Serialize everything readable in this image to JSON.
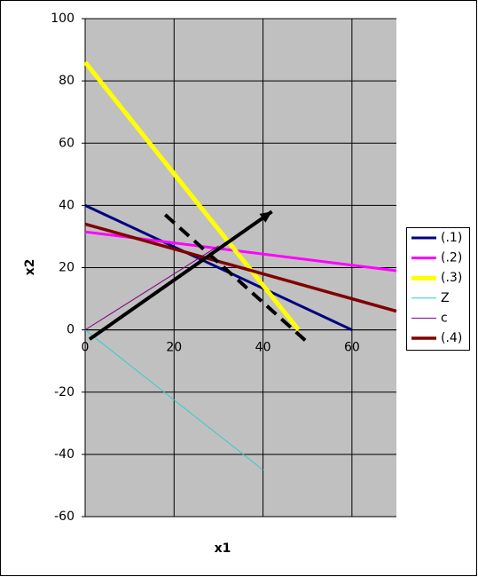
{
  "chart_data": {
    "type": "line",
    "x_label": "x1",
    "y_label": "x2",
    "xlim": [
      0,
      70
    ],
    "xticks": [
      0,
      20,
      40,
      60
    ],
    "ylim": [
      -60,
      100
    ],
    "yticks": [
      -60,
      -40,
      -20,
      0,
      20,
      40,
      60,
      80,
      100
    ],
    "grid": true,
    "legend": "right",
    "series": [
      {
        "name": "(.1)",
        "color": "#000080",
        "width": 3,
        "x": [
          0,
          60
        ],
        "values": [
          40,
          0
        ]
      },
      {
        "name": "(.2)",
        "color": "#ff00ff",
        "width": 3,
        "x": [
          0,
          70
        ],
        "values": [
          31.5,
          19
        ]
      },
      {
        "name": "(.3)",
        "color": "#ffff00",
        "width": 5,
        "x": [
          0,
          48
        ],
        "values": [
          86,
          0
        ]
      },
      {
        "name": "Z",
        "color": "#33cccc",
        "width": 1,
        "x": [
          0,
          40
        ],
        "values": [
          0,
          -45
        ]
      },
      {
        "name": "c",
        "color": "#800080",
        "width": 1,
        "x": [
          0,
          30
        ],
        "values": [
          0,
          27
        ]
      },
      {
        "name": "(.4)",
        "color": "#800000",
        "width": 3.5,
        "x": [
          0,
          70
        ],
        "values": [
          34,
          6
        ]
      }
    ],
    "arrows": [
      {
        "color": "#000000",
        "dashed": false,
        "x": [
          1,
          42
        ],
        "y": [
          -3,
          38
        ]
      },
      {
        "color": "#000000",
        "dashed": true,
        "x": [
          18,
          50
        ],
        "y": [
          37,
          -4
        ]
      }
    ]
  }
}
